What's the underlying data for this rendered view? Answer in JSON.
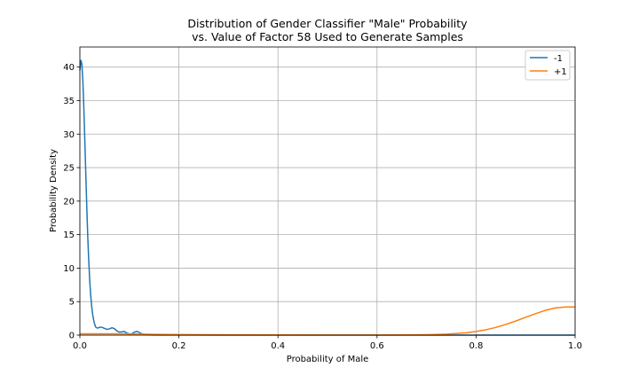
{
  "chart_data": {
    "type": "line",
    "title_line1": "Distribution of Gender Classifier \"Male\" Probability",
    "title_line2": "vs. Value of Factor 58 Used to Generate Samples",
    "xlabel": "Probability of Male",
    "ylabel": "Probability Density",
    "xlim": [
      0,
      1
    ],
    "ylim": [
      0,
      43
    ],
    "xticks": [
      0.0,
      0.2,
      0.4,
      0.6,
      0.8,
      1.0
    ],
    "xtick_labels": [
      "0.0",
      "0.2",
      "0.4",
      "0.6",
      "0.8",
      "1.0"
    ],
    "yticks": [
      0,
      5,
      10,
      15,
      20,
      25,
      30,
      35,
      40
    ],
    "ytick_labels": [
      "0",
      "5",
      "10",
      "15",
      "20",
      "25",
      "30",
      "35",
      "40"
    ],
    "grid": true,
    "legend_position": "top-right",
    "series": [
      {
        "name": "-1",
        "color": "#1f77b4",
        "x": [
          0.0,
          0.002,
          0.004,
          0.006,
          0.008,
          0.01,
          0.012,
          0.014,
          0.016,
          0.018,
          0.02,
          0.022,
          0.024,
          0.026,
          0.028,
          0.03,
          0.032,
          0.035,
          0.038,
          0.041,
          0.045,
          0.05,
          0.055,
          0.06,
          0.065,
          0.07,
          0.075,
          0.08,
          0.085,
          0.09,
          0.095,
          0.1,
          0.105,
          0.11,
          0.115,
          0.12,
          0.125,
          0.13,
          0.135,
          0.14,
          0.15,
          0.2,
          0.3,
          0.5,
          0.7,
          1.0
        ],
        "y": [
          39.5,
          41.0,
          40.5,
          38.0,
          34.0,
          29.0,
          24.0,
          19.0,
          14.5,
          11.0,
          8.0,
          5.8,
          4.2,
          3.0,
          2.2,
          1.6,
          1.2,
          1.05,
          1.1,
          1.2,
          1.15,
          1.0,
          0.85,
          0.95,
          1.1,
          0.95,
          0.6,
          0.45,
          0.5,
          0.55,
          0.3,
          0.15,
          0.2,
          0.45,
          0.55,
          0.4,
          0.2,
          0.1,
          0.05,
          0.03,
          0.02,
          0.01,
          0.0,
          0.0,
          0.0,
          0.0
        ]
      },
      {
        "name": "+1",
        "color": "#ff7f0e",
        "x": [
          0.0,
          0.05,
          0.1,
          0.15,
          0.2,
          0.3,
          0.4,
          0.5,
          0.6,
          0.65,
          0.7,
          0.72,
          0.74,
          0.76,
          0.78,
          0.8,
          0.82,
          0.84,
          0.86,
          0.88,
          0.9,
          0.92,
          0.94,
          0.96,
          0.98,
          1.0
        ],
        "y": [
          0.2,
          0.2,
          0.18,
          0.12,
          0.08,
          0.05,
          0.03,
          0.02,
          0.02,
          0.03,
          0.06,
          0.1,
          0.15,
          0.25,
          0.35,
          0.55,
          0.8,
          1.15,
          1.6,
          2.1,
          2.65,
          3.2,
          3.7,
          4.05,
          4.2,
          4.2
        ]
      }
    ]
  }
}
